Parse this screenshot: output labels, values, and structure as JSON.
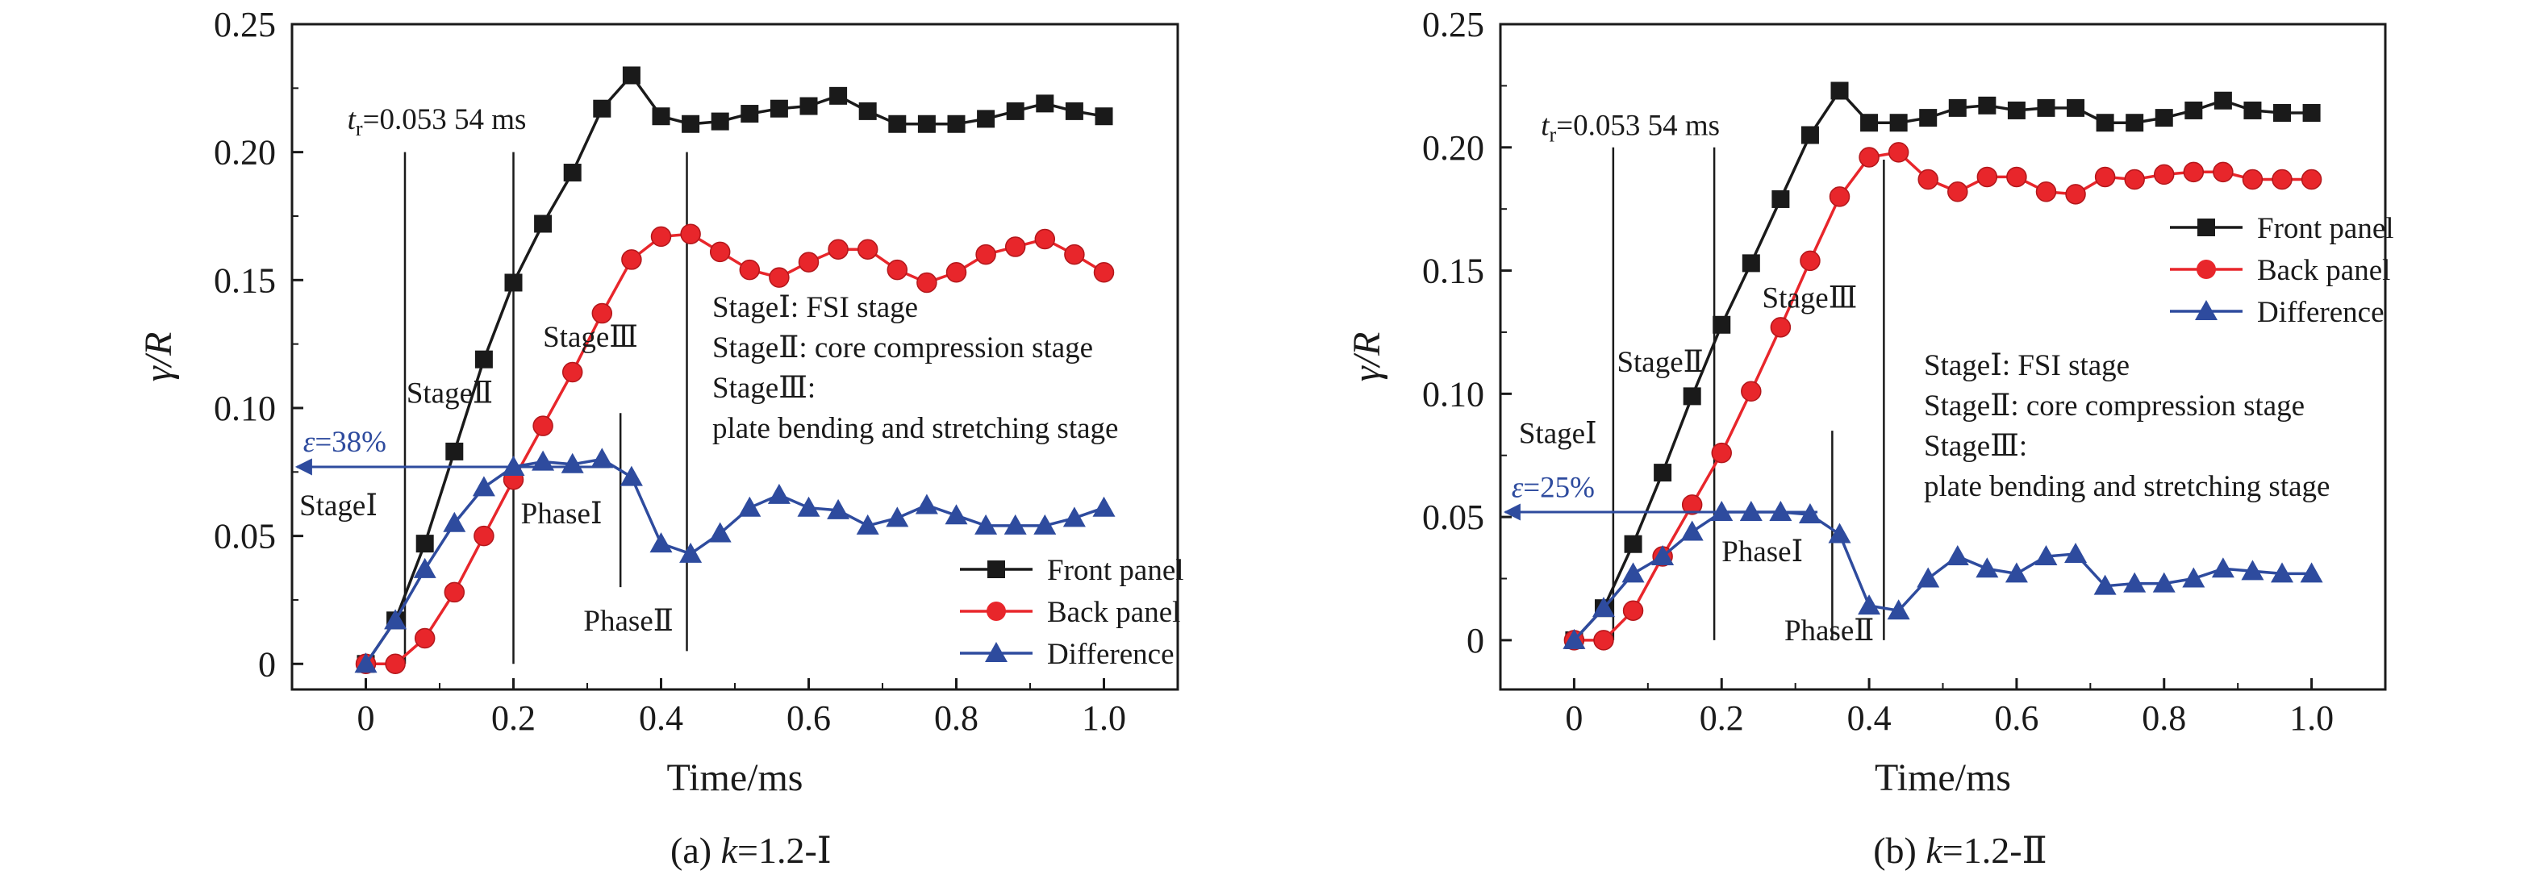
{
  "chart_data": [
    {
      "type": "line",
      "caption": "(a) k=1.2-Ⅰ",
      "xlabel": "Time/ms",
      "ylabel": "γ/R",
      "xlim": [
        -0.1,
        1.1
      ],
      "ylim": [
        -0.01,
        0.25
      ],
      "xticks": [
        0,
        0.2,
        0.4,
        0.6,
        0.8,
        1.0
      ],
      "xtick_labels": [
        "0",
        "0.2",
        "0.4",
        "0.6",
        "0.8",
        "1.0"
      ],
      "yticks": [
        0,
        0.05,
        0.1,
        0.15,
        0.2,
        0.25
      ],
      "ytick_labels": [
        "0",
        "0.05",
        "0.10",
        "0.15",
        "0.20",
        "0.25"
      ],
      "grid": false,
      "legend_position": "bottom-right",
      "series": [
        {
          "name": "Front panel",
          "color": "#1a1a1a",
          "marker": "square",
          "x": [
            0,
            0.04,
            0.08,
            0.12,
            0.16,
            0.2,
            0.24,
            0.28,
            0.32,
            0.36,
            0.4,
            0.44,
            0.48,
            0.52,
            0.56,
            0.6,
            0.64,
            0.68,
            0.72,
            0.76,
            0.8,
            0.84,
            0.88,
            0.92,
            0.96,
            1.0
          ],
          "y": [
            0,
            0.017,
            0.047,
            0.083,
            0.119,
            0.149,
            0.172,
            0.192,
            0.217,
            0.23,
            0.214,
            0.211,
            0.212,
            0.215,
            0.217,
            0.218,
            0.222,
            0.216,
            0.211,
            0.211,
            0.211,
            0.213,
            0.216,
            0.219,
            0.216,
            0.214
          ]
        },
        {
          "name": "Back panel",
          "color": "#e8262b",
          "marker": "circle",
          "x": [
            0,
            0.04,
            0.08,
            0.12,
            0.16,
            0.2,
            0.24,
            0.28,
            0.32,
            0.36,
            0.4,
            0.44,
            0.48,
            0.52,
            0.56,
            0.6,
            0.64,
            0.68,
            0.72,
            0.76,
            0.8,
            0.84,
            0.88,
            0.92,
            0.96,
            1.0
          ],
          "y": [
            0,
            0,
            0.01,
            0.028,
            0.05,
            0.072,
            0.093,
            0.114,
            0.137,
            0.158,
            0.167,
            0.168,
            0.161,
            0.154,
            0.151,
            0.157,
            0.162,
            0.162,
            0.154,
            0.149,
            0.153,
            0.16,
            0.163,
            0.166,
            0.16,
            0.153
          ]
        },
        {
          "name": "Difference",
          "color": "#2e4b9e",
          "marker": "triangle",
          "x": [
            0,
            0.04,
            0.08,
            0.12,
            0.16,
            0.2,
            0.24,
            0.28,
            0.32,
            0.36,
            0.4,
            0.44,
            0.48,
            0.52,
            0.56,
            0.6,
            0.64,
            0.68,
            0.72,
            0.76,
            0.8,
            0.84,
            0.88,
            0.92,
            0.96,
            1.0
          ],
          "y": [
            0,
            0.017,
            0.037,
            0.055,
            0.069,
            0.077,
            0.079,
            0.078,
            0.08,
            0.073,
            0.047,
            0.043,
            0.051,
            0.061,
            0.066,
            0.061,
            0.06,
            0.054,
            0.057,
            0.062,
            0.058,
            0.054,
            0.054,
            0.054,
            0.057,
            0.061
          ]
        }
      ],
      "vlines": [
        {
          "x": 0.053,
          "y": [
            0,
            0.2
          ]
        },
        {
          "x": 0.2,
          "y": [
            0,
            0.2
          ]
        },
        {
          "x": 0.345,
          "y": [
            0.03,
            0.098
          ]
        },
        {
          "x": 0.435,
          "y": [
            0.005,
            0.2
          ]
        }
      ],
      "arrow": {
        "label": "ε=38%",
        "y": 0.077,
        "x_from": 0.33,
        "x_to": -0.1
      },
      "annotations": {
        "tr_prefix": "t",
        "tr_sub": "r",
        "tr_value": "=0.053 54 ms",
        "stage1": "StageⅠ",
        "stage2": "StageⅡ",
        "stage3": "StageⅢ",
        "phase1": "PhaseⅠ",
        "phase2": "PhaseⅡ",
        "desc": [
          "StageⅠ: FSI stage",
          "StageⅡ: core compression stage",
          "StageⅢ:",
          "plate bending and stretching stage"
        ]
      }
    },
    {
      "type": "line",
      "caption": "(b) k=1.2-Ⅱ",
      "xlabel": "Time/ms",
      "ylabel": "γ/R",
      "xlim": [
        -0.1,
        1.1
      ],
      "ylim": [
        -0.02,
        0.25
      ],
      "xticks": [
        0,
        0.2,
        0.4,
        0.6,
        0.8,
        1.0
      ],
      "xtick_labels": [
        "0",
        "0.2",
        "0.4",
        "0.6",
        "0.8",
        "1.0"
      ],
      "yticks": [
        0,
        0.05,
        0.1,
        0.15,
        0.2,
        0.25
      ],
      "ytick_labels": [
        "0",
        "0.05",
        "0.10",
        "0.15",
        "0.20",
        "0.25"
      ],
      "grid": false,
      "legend_position": "top-right",
      "series": [
        {
          "name": "Front panel",
          "color": "#1a1a1a",
          "marker": "square",
          "x": [
            0,
            0.04,
            0.08,
            0.12,
            0.16,
            0.2,
            0.24,
            0.28,
            0.32,
            0.36,
            0.4,
            0.44,
            0.48,
            0.52,
            0.56,
            0.6,
            0.64,
            0.68,
            0.72,
            0.76,
            0.8,
            0.84,
            0.88,
            0.92,
            0.96,
            1.0
          ],
          "y": [
            0,
            0.013,
            0.039,
            0.068,
            0.099,
            0.128,
            0.153,
            0.179,
            0.205,
            0.223,
            0.21,
            0.21,
            0.212,
            0.216,
            0.217,
            0.215,
            0.216,
            0.216,
            0.21,
            0.21,
            0.212,
            0.215,
            0.219,
            0.215,
            0.214,
            0.214
          ]
        },
        {
          "name": "Back panel",
          "color": "#e8262b",
          "marker": "circle",
          "x": [
            0,
            0.04,
            0.08,
            0.12,
            0.16,
            0.2,
            0.24,
            0.28,
            0.32,
            0.36,
            0.4,
            0.44,
            0.48,
            0.52,
            0.56,
            0.6,
            0.64,
            0.68,
            0.72,
            0.76,
            0.8,
            0.84,
            0.88,
            0.92,
            0.96,
            1.0
          ],
          "y": [
            0,
            0,
            0.012,
            0.034,
            0.055,
            0.076,
            0.101,
            0.127,
            0.154,
            0.18,
            0.196,
            0.198,
            0.187,
            0.182,
            0.188,
            0.188,
            0.182,
            0.181,
            0.188,
            0.187,
            0.189,
            0.19,
            0.19,
            0.187,
            0.187,
            0.187
          ]
        },
        {
          "name": "Difference",
          "color": "#2e4b9e",
          "marker": "triangle",
          "x": [
            0,
            0.04,
            0.08,
            0.12,
            0.16,
            0.2,
            0.24,
            0.28,
            0.32,
            0.36,
            0.4,
            0.44,
            0.48,
            0.52,
            0.56,
            0.6,
            0.64,
            0.68,
            0.72,
            0.76,
            0.8,
            0.84,
            0.88,
            0.92,
            0.96,
            1.0
          ],
          "y": [
            0,
            0.013,
            0.027,
            0.034,
            0.044,
            0.052,
            0.052,
            0.052,
            0.051,
            0.043,
            0.014,
            0.012,
            0.025,
            0.034,
            0.029,
            0.027,
            0.034,
            0.035,
            0.022,
            0.023,
            0.023,
            0.025,
            0.029,
            0.028,
            0.027,
            0.027
          ]
        }
      ],
      "vlines": [
        {
          "x": 0.053,
          "y": [
            0,
            0.2
          ]
        },
        {
          "x": 0.19,
          "y": [
            0,
            0.2
          ]
        },
        {
          "x": 0.35,
          "y": [
            0,
            0.085
          ]
        },
        {
          "x": 0.42,
          "y": [
            0,
            0.195
          ]
        }
      ],
      "arrow": {
        "label": "ε=25%",
        "y": 0.052,
        "x_from": 0.33,
        "x_to": -0.1
      },
      "annotations": {
        "tr_prefix": "t",
        "tr_sub": "r",
        "tr_value": "=0.053 54 ms",
        "stage1": "StageⅠ",
        "stage2": "StageⅡ",
        "stage3": "StageⅢ",
        "phase1": "PhaseⅠ",
        "phase2": "PhaseⅡ",
        "desc": [
          "StageⅠ: FSI stage",
          "StageⅡ: core compression stage",
          "StageⅢ:",
          "plate bending and stretching stage"
        ]
      }
    }
  ]
}
